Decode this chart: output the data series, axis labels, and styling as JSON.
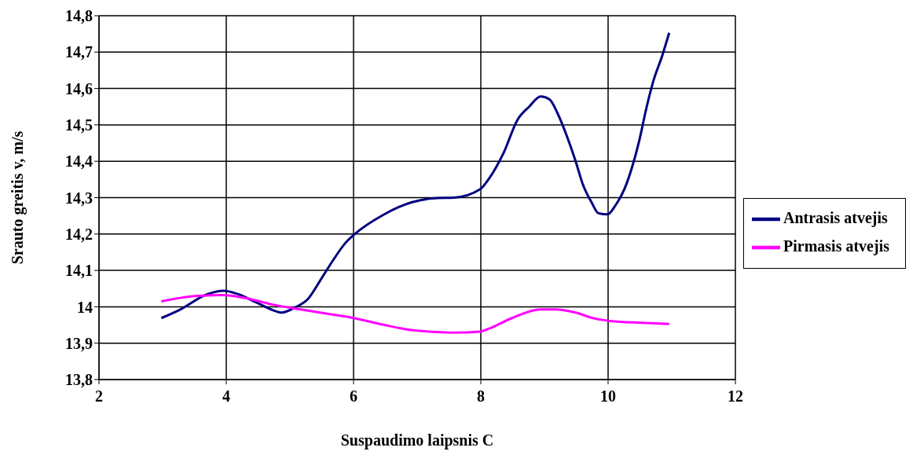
{
  "chart_data": {
    "type": "line",
    "xlabel": "Suspaudimo laipsnis C",
    "ylabel": "Srauto greitis v, m/s",
    "xlim": [
      2,
      12
    ],
    "xticks": [
      2,
      4,
      6,
      8,
      10,
      12
    ],
    "ylim": [
      13.8,
      14.8
    ],
    "yticks": [
      {
        "value": 13.8,
        "label": "13,8"
      },
      {
        "value": 13.9,
        "label": "13,9"
      },
      {
        "value": 14,
        "label": "14"
      },
      {
        "value": 14.1,
        "label": "14,1"
      },
      {
        "value": 14.2,
        "label": "14,2"
      },
      {
        "value": 14.3,
        "label": "14,3"
      },
      {
        "value": 14.4,
        "label": "14,4"
      },
      {
        "value": 14.5,
        "label": "14,5"
      },
      {
        "value": 14.6,
        "label": "14,6"
      },
      {
        "value": 14.7,
        "label": "14,7"
      },
      {
        "value": 14.8,
        "label": "14,8"
      }
    ],
    "grid": true,
    "legend": "right",
    "line_style": "solid",
    "marker": "none",
    "series": [
      {
        "name": "Antrasis atvejis",
        "color": "#000080",
        "x": [
          2.98,
          3.26,
          3.71,
          3.96,
          4.18,
          4.46,
          4.73,
          4.87,
          5.09,
          5.28,
          5.5,
          5.69,
          5.87,
          6.0,
          6.46,
          6.91,
          7.32,
          7.58,
          7.99,
          8.12,
          8.35,
          8.58,
          8.76,
          8.94,
          9.08,
          9.21,
          9.35,
          9.49,
          9.6,
          9.74,
          9.85,
          9.99,
          10.12,
          10.26,
          10.37,
          10.49,
          10.6,
          10.71,
          10.85,
          10.96
        ],
        "values": [
          13.969,
          13.991,
          14.035,
          14.044,
          14.035,
          14.013,
          13.991,
          13.984,
          13.999,
          14.021,
          14.079,
          14.131,
          14.175,
          14.197,
          14.252,
          14.287,
          14.299,
          14.3,
          14.323,
          14.35,
          14.42,
          14.515,
          14.55,
          14.578,
          14.57,
          14.53,
          14.47,
          14.4,
          14.338,
          14.287,
          14.257,
          14.254,
          14.28,
          14.325,
          14.38,
          14.457,
          14.545,
          14.62,
          14.69,
          14.753
        ]
      },
      {
        "name": "Pirmasis atvejis",
        "color": "#ff00ff",
        "x": [
          2.98,
          3.48,
          3.94,
          4.3,
          4.73,
          5.09,
          5.55,
          6.0,
          6.46,
          6.91,
          7.37,
          7.58,
          7.99,
          8.17,
          8.49,
          8.94,
          9.17,
          9.49,
          9.76,
          10.03,
          10.53,
          10.96
        ],
        "values": [
          14.015,
          14.029,
          14.032,
          14.024,
          14.006,
          13.995,
          13.982,
          13.969,
          13.951,
          13.936,
          13.93,
          13.929,
          13.932,
          13.943,
          13.969,
          13.993,
          13.993,
          13.984,
          13.969,
          13.961,
          13.956,
          13.953
        ]
      }
    ]
  }
}
